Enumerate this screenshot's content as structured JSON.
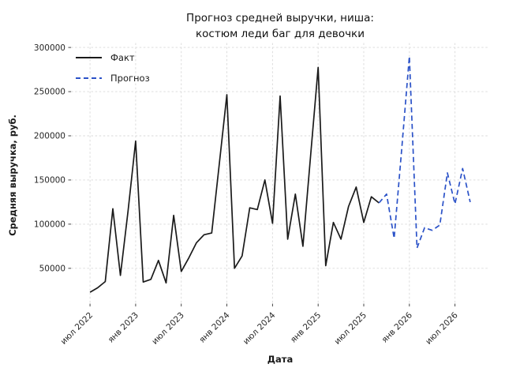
{
  "figure": {
    "title_line1": "Прогноз средней выручки, ниша:",
    "title_line2": "костюм леди баг для девочки"
  },
  "chart_data": {
    "type": "line",
    "title": "Прогноз средней выручки, ниша: костюм леди баг для девочки",
    "xlabel": "Дата",
    "ylabel": "Средняя выручка, руб.",
    "grid": true,
    "legend_position": "upper left",
    "x_unit": "month index, 0 = 2022-07",
    "xlim": [
      -2.5,
      52.5
    ],
    "ylim": [
      10000,
      305000
    ],
    "yticks": [
      50000,
      100000,
      150000,
      200000,
      250000,
      300000
    ],
    "xticks": {
      "positions": [
        0,
        6,
        12,
        18,
        24,
        30,
        36,
        42,
        48
      ],
      "labels": [
        "июл 2022",
        "янв 2023",
        "июл 2023",
        "янв 2024",
        "июл 2024",
        "янв 2025",
        "июл 2025",
        "янв 2026",
        "июл 2026"
      ]
    },
    "series": [
      {
        "name": "Факт",
        "color": "#1a1a1a",
        "dash": "solid",
        "months": [
          "2022-07",
          "2022-08",
          "2022-09",
          "2022-10",
          "2022-11",
          "2022-12",
          "2023-01",
          "2023-02",
          "2023-03",
          "2023-04",
          "2023-05",
          "2023-06",
          "2023-07",
          "2023-08",
          "2023-09",
          "2023-10",
          "2023-11",
          "2023-12",
          "2024-01",
          "2024-02",
          "2024-03",
          "2024-04",
          "2024-05",
          "2024-06",
          "2024-07",
          "2024-08",
          "2024-09",
          "2024-10",
          "2024-11",
          "2024-12",
          "2025-01",
          "2025-02",
          "2025-03",
          "2025-04",
          "2025-05",
          "2025-06",
          "2025-07",
          "2025-08",
          "2025-09"
        ],
        "x": [
          0,
          1,
          2,
          3,
          4,
          5,
          6,
          7,
          8,
          9,
          10,
          11,
          12,
          13,
          14,
          15,
          16,
          17,
          18,
          19,
          20,
          21,
          22,
          23,
          24,
          25,
          26,
          27,
          28,
          29,
          30,
          31,
          32,
          33,
          34,
          35,
          36,
          37,
          38
        ],
        "values": [
          23000,
          28000,
          35000,
          117500,
          42000,
          115000,
          194000,
          34500,
          37500,
          59000,
          33500,
          110000,
          46500,
          62000,
          79000,
          88000,
          90000,
          168000,
          246500,
          50000,
          64000,
          118500,
          116500,
          150000,
          101000,
          245000,
          83000,
          134000,
          75000,
          176000,
          277500,
          53000,
          102000,
          83000,
          120000,
          142000,
          102000,
          131000,
          124000
        ]
      },
      {
        "name": "Прогноз",
        "color": "#2b52c8",
        "dash": "dashed",
        "months": [
          "2025-09",
          "2025-10",
          "2025-11",
          "2025-12",
          "2026-01",
          "2026-02",
          "2026-03",
          "2026-04",
          "2026-05",
          "2026-06",
          "2026-07",
          "2026-08",
          "2026-09"
        ],
        "x": [
          38,
          39,
          40,
          41,
          42,
          43,
          44,
          45,
          46,
          47,
          48,
          49,
          50
        ],
        "values": [
          124000,
          134000,
          84000,
          186000,
          290000,
          73000,
          96000,
          93000,
          99000,
          158000,
          123000,
          163000,
          125000
        ]
      }
    ]
  }
}
